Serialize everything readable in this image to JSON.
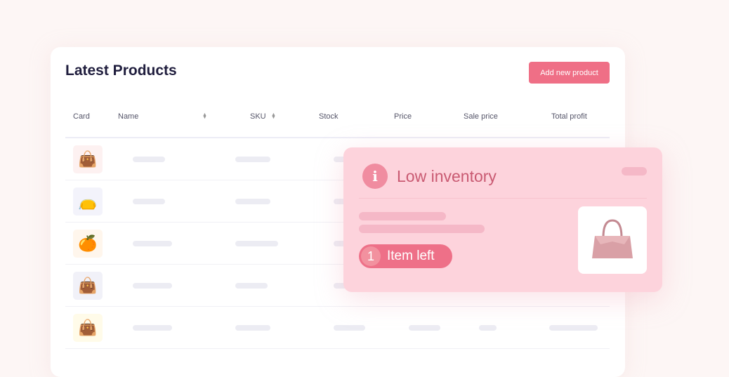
{
  "card": {
    "title": "Latest Products",
    "add_button": "Add new product",
    "columns": [
      "Card",
      "Name",
      "SKU",
      "Stock",
      "Price",
      "Sale price",
      "Total profit"
    ],
    "rows": [
      {
        "product": "pink handbag",
        "thumb_bg": "#fdf1f1"
      },
      {
        "product": "blue holographic bag",
        "thumb_bg": "#f3f3fb"
      },
      {
        "product": "orange fruit",
        "thumb_bg": "#fff6ec"
      },
      {
        "product": "navy handbag",
        "thumb_bg": "#f1f1f8"
      },
      {
        "product": "yellow bag",
        "thumb_bg": "#fffbe9"
      }
    ]
  },
  "popup": {
    "icon": "info-icon",
    "title": "Low inventory",
    "count": "1",
    "count_label": "Item left",
    "accent": "#ee7088"
  }
}
